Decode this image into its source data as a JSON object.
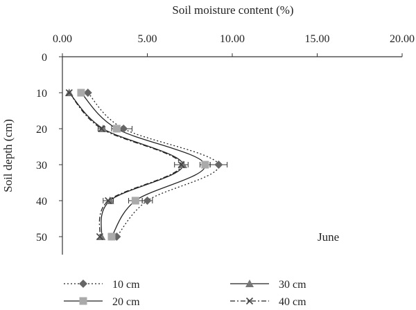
{
  "chart_data": {
    "type": "line",
    "orientation": "x-top-y-inverted",
    "x_title": "Soil moisture content (%)",
    "y_title": "Soil depth (cm)",
    "xlim": [
      0,
      20
    ],
    "ylim": [
      0,
      55
    ],
    "x_ticks": [
      "0.00",
      "5.00",
      "10.00",
      "15.00",
      "20.00"
    ],
    "y_ticks": [
      "0",
      "10",
      "20",
      "30",
      "40",
      "50"
    ],
    "annotation": "June",
    "depths": [
      10,
      20,
      30,
      40,
      50
    ],
    "series": [
      {
        "name": "10 cm",
        "values": [
          1.5,
          3.6,
          9.2,
          5.0,
          3.2
        ],
        "error": [
          0,
          0.5,
          0.5,
          0.3,
          0
        ],
        "marker": "diamond",
        "line": "dotted",
        "color": "#666666"
      },
      {
        "name": "20 cm",
        "values": [
          1.1,
          3.2,
          8.4,
          4.3,
          2.9
        ],
        "error": [
          0,
          0.3,
          0.3,
          0.4,
          0.2
        ],
        "marker": "square",
        "line": "solid",
        "color": "#aaaaaa"
      },
      {
        "name": "30 cm",
        "values": [
          0.4,
          2.4,
          7.1,
          2.8,
          2.3
        ],
        "error": [
          0,
          0,
          0,
          0,
          0
        ],
        "marker": "triangle",
        "line": "solid",
        "color": "#777777"
      },
      {
        "name": "40 cm",
        "values": [
          0.4,
          2.3,
          7.0,
          2.7,
          2.2
        ],
        "error": [
          0,
          0.2,
          0.4,
          0.3,
          0
        ],
        "marker": "x",
        "line": "dashdot",
        "color": "#444444"
      }
    ]
  }
}
